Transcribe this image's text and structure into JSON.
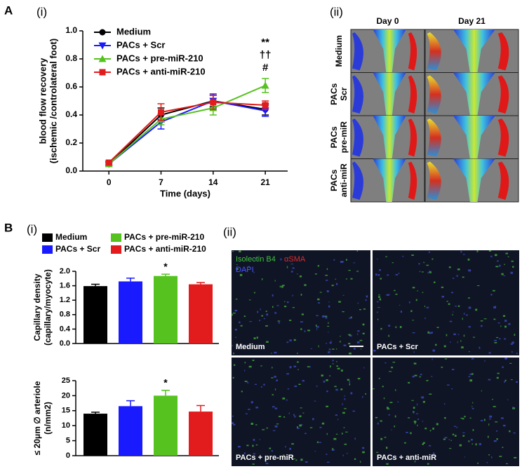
{
  "panel_labels": [
    "A",
    "(i)",
    "(ii)",
    "B",
    "(i)",
    "(ii)"
  ],
  "chart_data": [
    {
      "type": "line",
      "ylabel": [
        "blood flow recovery",
        "(ischemic /controlateral foot)"
      ],
      "xlabel": "Time (days)",
      "x": [
        0,
        7,
        14,
        21
      ],
      "xlim": [
        -3.5,
        24
      ],
      "xticks": [
        0,
        7,
        14,
        21
      ],
      "ylim": [
        0,
        1
      ],
      "yticks": [
        {
          "value": 0,
          "label": "0.0"
        },
        0.2,
        0.4,
        0.6,
        0.8,
        {
          "value": 1,
          "label": "1.0"
        }
      ],
      "series": [
        {
          "name": "Medium",
          "color": "#000000",
          "marker": "circle",
          "values": [
            0.05,
            0.4,
            0.5,
            0.44
          ],
          "errors": [
            0.01,
            0.05,
            0.04,
            0.04
          ]
        },
        {
          "name": "PACs + Scr",
          "color": "#1a1aff",
          "marker": "triangle-down",
          "values": [
            0.05,
            0.35,
            0.5,
            0.43
          ],
          "errors": [
            0.01,
            0.05,
            0.05,
            0.04
          ]
        },
        {
          "name": "PACs + pre-miR-210",
          "color": "#55c21f",
          "marker": "triangle-up",
          "values": [
            0.05,
            0.37,
            0.45,
            0.61
          ],
          "errors": [
            0.01,
            0.04,
            0.05,
            0.05
          ]
        },
        {
          "name": "PACs + anti-miR-210",
          "color": "#e21c1c",
          "marker": "square",
          "values": [
            0.06,
            0.42,
            0.49,
            0.47
          ],
          "errors": [
            0.01,
            0.06,
            0.05,
            0.03
          ]
        }
      ],
      "annotations": [
        "**",
        "††",
        "#"
      ]
    },
    {
      "type": "bar",
      "ylabel": [
        "Capillary density",
        "(capillary/myocyte)"
      ],
      "ylim": [
        0,
        2
      ],
      "yticks": [
        {
          "value": 0,
          "label": "0.0"
        },
        0.4,
        0.8,
        1.2,
        1.6,
        {
          "value": 2,
          "label": "2.0"
        }
      ],
      "series": [
        {
          "name": "Medium",
          "color": "#000000",
          "values": [
            1.59
          ],
          "errors": [
            0.05
          ]
        },
        {
          "name": "PACs + Scr",
          "color": "#1a1aff",
          "values": [
            1.72
          ],
          "errors": [
            0.09
          ]
        },
        {
          "name": "PACs + pre-miR-210",
          "color": "#55c21f",
          "values": [
            1.87
          ],
          "errors": [
            0.05
          ]
        },
        {
          "name": "PACs + anti-miR-210",
          "color": "#e21c1c",
          "values": [
            1.64
          ],
          "errors": [
            0.05
          ]
        }
      ],
      "annotations": [
        "*"
      ]
    },
    {
      "type": "bar",
      "ylabel": [
        "≤ 20μm ∅ arteriole",
        "(n/mm2)"
      ],
      "ylim": [
        0,
        25
      ],
      "yticks": [
        0,
        5,
        10,
        15,
        20,
        25
      ],
      "values": [
        14.0,
        16.5,
        20.0,
        14.7
      ],
      "errors": [
        0.5,
        1.8,
        1.8,
        2.0
      ],
      "colors": [
        "#000000",
        "#1a1aff",
        "#55c21f",
        "#e21c1c"
      ],
      "annotations": [
        "*"
      ]
    }
  ],
  "perfusion_images": {
    "columns": [
      "Day 0",
      "Day 21"
    ],
    "rows": [
      [
        "Medium"
      ],
      [
        "PACs",
        "Scr"
      ],
      [
        "PACs",
        "pre-miR"
      ],
      [
        "PACs",
        "anti-miR"
      ]
    ]
  },
  "histology_images": {
    "stains": [
      "Isolectin B4",
      "αSMA",
      "DAPI"
    ],
    "panels": [
      "Medium",
      "PACs + Scr",
      "PACs + pre-miR",
      "PACs + anti-miR"
    ]
  }
}
